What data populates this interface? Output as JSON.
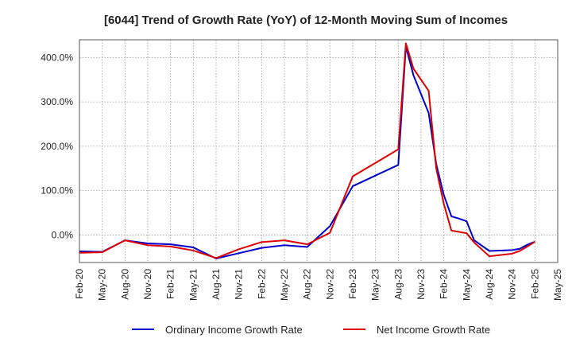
{
  "chart_data": {
    "type": "line",
    "title": "[6044]  Trend of Growth Rate (YoY) of 12-Month Moving Sum of Incomes",
    "xlabel": "",
    "ylabel": "",
    "ylim": [
      -62,
      440
    ],
    "y_ticks": [
      0,
      100,
      200,
      300,
      400
    ],
    "y_tick_labels": [
      "0.0%",
      "100.0%",
      "200.0%",
      "300.0%",
      "400.0%"
    ],
    "x_tick_labels": [
      "Feb-20",
      "May-20",
      "Aug-20",
      "Nov-20",
      "Feb-21",
      "May-21",
      "Aug-21",
      "Nov-21",
      "Feb-22",
      "May-22",
      "Aug-22",
      "Nov-22",
      "Feb-23",
      "May-23",
      "Aug-23",
      "Nov-23",
      "Feb-24",
      "May-24",
      "Aug-24",
      "Nov-24",
      "Feb-25",
      "May-25"
    ],
    "grid": true,
    "legend_position": "bottom",
    "series": [
      {
        "name": "Ordinary Income Growth Rate",
        "color": "#0000cc",
        "values": [
          -37,
          -38,
          -12,
          -19,
          -21,
          -28,
          -53,
          -41,
          -29,
          -23,
          -27,
          20,
          110,
          158,
          425,
          360,
          275,
          160,
          90,
          42,
          37,
          31,
          -12,
          -36,
          -34,
          -31,
          -22,
          -15
        ]
      },
      {
        "name": "Net Income Growth Rate",
        "color": "#dd0000",
        "values": [
          -40,
          -39,
          -12,
          -23,
          -26,
          -35,
          -52,
          -32,
          -16,
          -12,
          -21,
          5,
          132,
          193,
          432,
          375,
          325,
          150,
          70,
          10,
          7,
          4,
          -17,
          -48,
          -42,
          -36,
          -26,
          -15
        ]
      }
    ],
    "x_values": [
      0,
      3,
      6,
      9,
      12,
      15,
      18,
      21,
      24,
      27,
      30,
      33,
      36,
      42,
      43,
      44,
      46,
      47,
      48,
      49,
      50,
      51,
      52,
      54,
      57,
      58,
      59,
      60
    ]
  }
}
